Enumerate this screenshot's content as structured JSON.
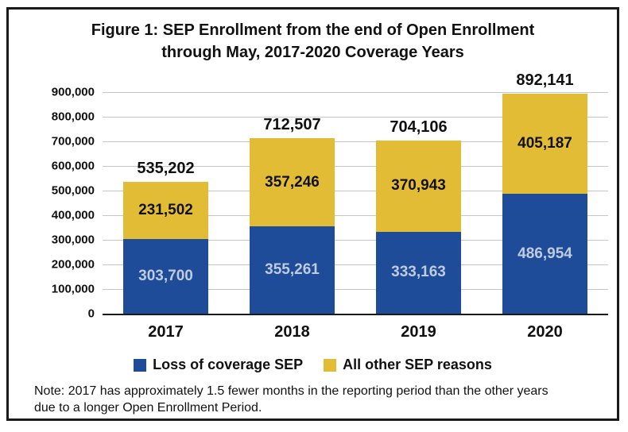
{
  "title": {
    "line1": "Figure 1: SEP Enrollment from the end of Open Enrollment",
    "line2": "through May, 2017-2020 Coverage Years"
  },
  "chart_data": {
    "type": "bar",
    "stacked": true,
    "title": "Figure 1: SEP Enrollment from the end of Open Enrollment through May, 2017-2020 Coverage Years",
    "categories": [
      "2017",
      "2018",
      "2019",
      "2020"
    ],
    "series": [
      {
        "name": "Loss of coverage SEP",
        "color": "#1F4C99",
        "label_color": "#BFCBDE",
        "values": [
          303700,
          355261,
          333163,
          486954
        ],
        "value_labels": [
          "303,700",
          "355,261",
          "333,163",
          "486,954"
        ]
      },
      {
        "name": "All other SEP reasons",
        "color": "#E3BC35",
        "label_color": "#111111",
        "values": [
          231502,
          357246,
          370943,
          405187
        ],
        "value_labels": [
          "231,502",
          "357,246",
          "370,943",
          "405,187"
        ]
      }
    ],
    "totals": [
      535202,
      712507,
      704106,
      892141
    ],
    "total_labels": [
      "535,202",
      "712,507",
      "704,106",
      "892,141"
    ],
    "ylim": [
      0,
      900000
    ],
    "ytick_interval": 100000,
    "ytick_labels": [
      "0",
      "100,000",
      "200,000",
      "300,000",
      "400,000",
      "500,000",
      "600,000",
      "700,000",
      "800,000",
      "900,000"
    ],
    "grid": true,
    "legend_position": "bottom"
  },
  "legend": {
    "items": [
      {
        "label": "Loss of coverage SEP",
        "color": "#1F4C99"
      },
      {
        "label": "All other SEP reasons",
        "color": "#E3BC35"
      }
    ]
  },
  "note": "Note: 2017 has approximately 1.5 fewer months in the reporting period than the other years due to a longer Open Enrollment Period.",
  "colors": {
    "bar_blue": "#1F4C99",
    "bar_gold": "#E3BC35",
    "blue_segment_label": "#BFCBDE",
    "gridline": "#C6C6C6",
    "axis": "#1A1A1A",
    "border": "#1A1A1A",
    "background": "#FFFFFF"
  }
}
